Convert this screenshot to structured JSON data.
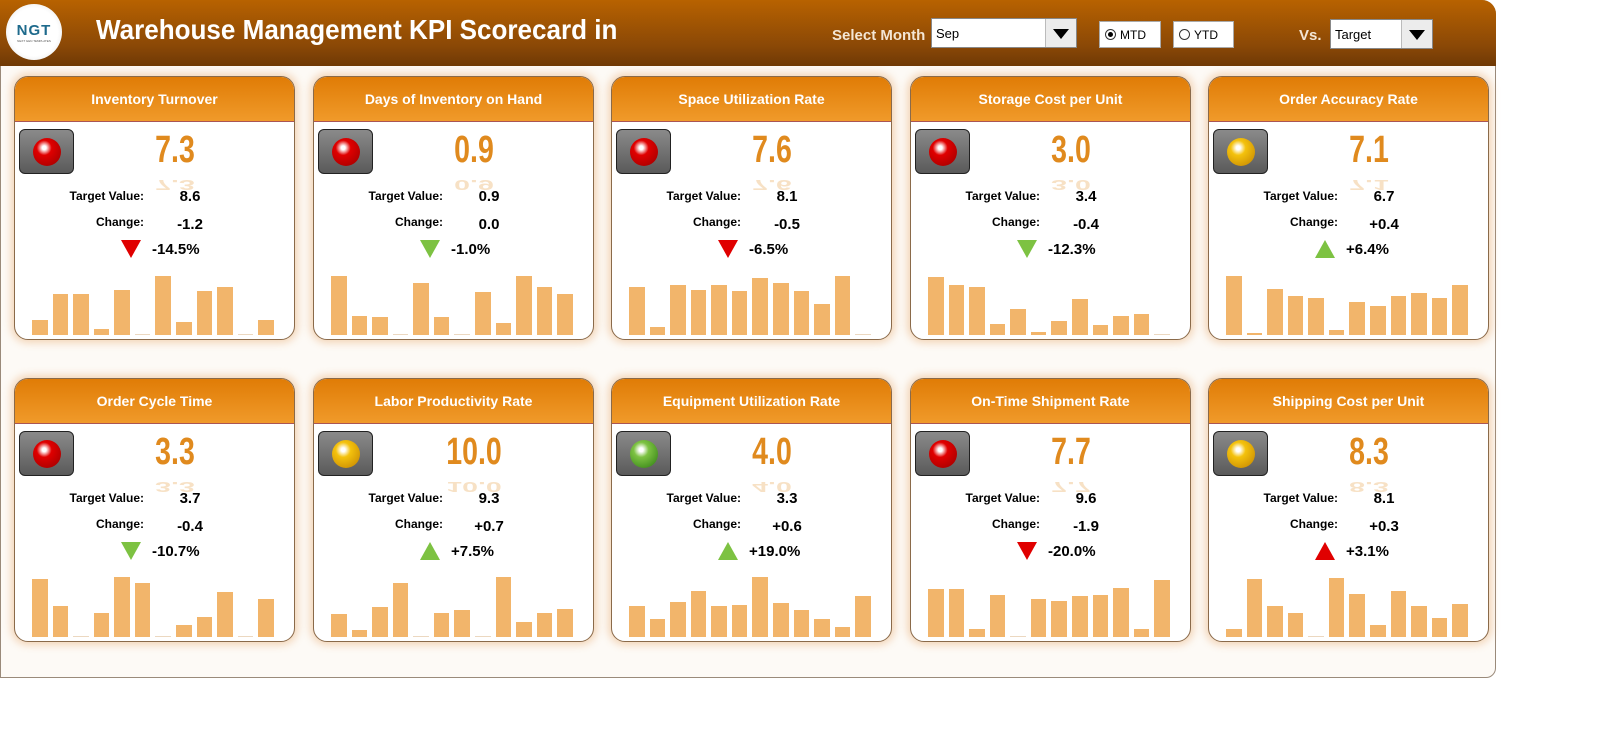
{
  "header": {
    "title": "Warehouse Management KPI Scorecard in",
    "logo_text": "NGT",
    "logo_sub": "NEXT GEN TEMPLATES",
    "select_month_label": "Select Month",
    "month_value": "Sep",
    "mtd_label": "MTD",
    "ytd_label": "YTD",
    "mode_selected": "MTD",
    "vs_label": "Vs.",
    "vs_value": "Target"
  },
  "colors": {
    "red": "#e00000",
    "green": "#7dc242",
    "yellow": "#f4c20d",
    "accent": "#e08a1e",
    "bar": "#f2b56b"
  },
  "labels": {
    "target": "Target Value:",
    "change": "Change:"
  },
  "cards": [
    {
      "title": "Inventory Turnover",
      "value": "7.3",
      "target": "8.6",
      "change": "-1.2",
      "pct": "-14.5%",
      "light": "red",
      "arrow": "down",
      "arrow_color": "red",
      "trend": [
        15,
        40,
        40,
        6,
        44,
        1,
        57,
        13,
        43,
        46,
        1,
        15
      ]
    },
    {
      "title": "Days of Inventory on Hand",
      "value": "0.9",
      "target": "0.9",
      "change": "0.0",
      "pct": "-1.0%",
      "light": "red",
      "arrow": "down",
      "arrow_color": "green",
      "trend": [
        57,
        18,
        17,
        1,
        50,
        17,
        1,
        42,
        12,
        57,
        46,
        40
      ]
    },
    {
      "title": "Space Utilization Rate",
      "value": "7.6",
      "target": "8.1",
      "change": "-0.5",
      "pct": "-6.5%",
      "light": "red",
      "arrow": "down",
      "arrow_color": "red",
      "trend": [
        46,
        8,
        48,
        44,
        48,
        43,
        55,
        50,
        43,
        30,
        57,
        1
      ]
    },
    {
      "title": "Storage Cost per Unit",
      "value": "3.0",
      "target": "3.4",
      "change": "-0.4",
      "pct": "-12.3%",
      "light": "red",
      "arrow": "down",
      "arrow_color": "green",
      "trend": [
        56,
        48,
        46,
        11,
        25,
        3,
        14,
        35,
        10,
        18,
        20,
        1
      ]
    },
    {
      "title": "Order Accuracy Rate",
      "value": "7.1",
      "target": "6.7",
      "change": "+0.4",
      "pct": "+6.4%",
      "light": "yellow",
      "arrow": "up",
      "arrow_color": "green",
      "trend": [
        57,
        2,
        45,
        38,
        36,
        5,
        32,
        28,
        38,
        41,
        36,
        48
      ]
    },
    {
      "title": "Order Cycle Time",
      "value": "3.3",
      "target": "3.7",
      "change": "-0.4",
      "pct": "-10.7%",
      "light": "red",
      "arrow": "down",
      "arrow_color": "green",
      "trend": [
        56,
        30,
        1,
        23,
        58,
        52,
        1,
        12,
        19,
        44,
        1,
        37
      ]
    },
    {
      "title": "Labor Productivity Rate",
      "value": "10.0",
      "target": "9.3",
      "change": "+0.7",
      "pct": "+7.5%",
      "light": "yellow",
      "arrow": "up",
      "arrow_color": "green",
      "trend": [
        22,
        7,
        29,
        52,
        1,
        23,
        26,
        1,
        58,
        15,
        23,
        27
      ]
    },
    {
      "title": "Equipment Utilization Rate",
      "value": "4.0",
      "target": "3.3",
      "change": "+0.6",
      "pct": "+19.0%",
      "light": "green",
      "arrow": "up",
      "arrow_color": "green",
      "trend": [
        30,
        17,
        34,
        45,
        30,
        31,
        58,
        33,
        26,
        17,
        10,
        40
      ]
    },
    {
      "title": "On-Time Shipment Rate",
      "value": "7.7",
      "target": "9.6",
      "change": "-1.9",
      "pct": "-20.0%",
      "light": "red",
      "arrow": "down",
      "arrow_color": "red",
      "trend": [
        46,
        46,
        8,
        41,
        1,
        37,
        35,
        40,
        41,
        47,
        8,
        55
      ]
    },
    {
      "title": "Shipping Cost per Unit",
      "value": "8.3",
      "target": "8.1",
      "change": "+0.3",
      "pct": "+3.1%",
      "light": "yellow",
      "arrow": "up",
      "arrow_color": "red",
      "trend": [
        8,
        56,
        30,
        23,
        1,
        57,
        42,
        12,
        45,
        30,
        18,
        32
      ]
    }
  ]
}
